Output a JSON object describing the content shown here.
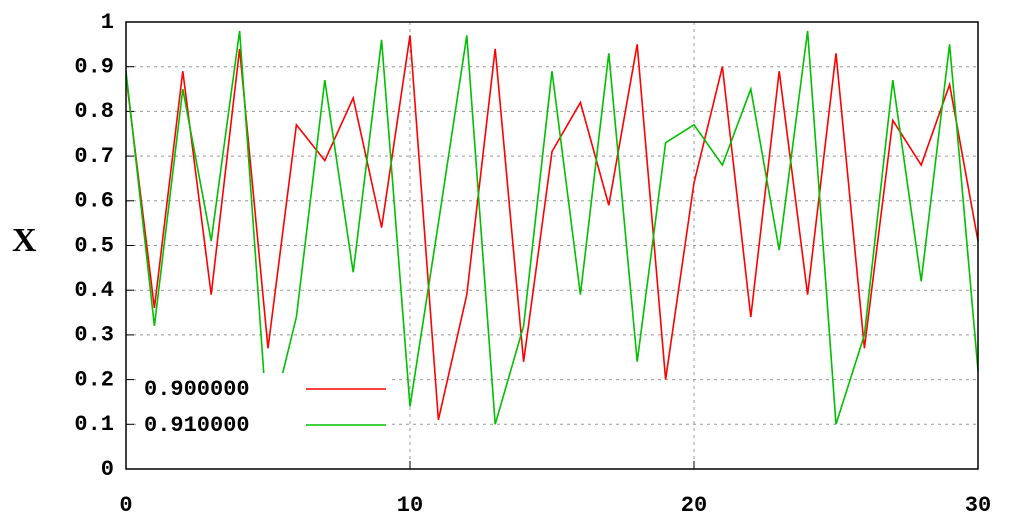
{
  "chart_data": {
    "type": "line",
    "y_label": "X",
    "x": [
      0,
      1,
      2,
      3,
      4,
      5,
      6,
      7,
      8,
      9,
      10,
      11,
      12,
      13,
      14,
      15,
      16,
      17,
      18,
      19,
      20,
      21,
      22,
      23,
      24,
      25,
      26,
      27,
      28,
      29,
      30
    ],
    "series": [
      {
        "name": "0.900000",
        "color": "#ff0000",
        "values": [
          0.88,
          0.36,
          0.89,
          0.39,
          0.94,
          0.27,
          0.77,
          0.69,
          0.83,
          0.54,
          0.97,
          0.11,
          0.39,
          0.94,
          0.24,
          0.71,
          0.82,
          0.59,
          0.95,
          0.2,
          0.64,
          0.9,
          0.34,
          0.89,
          0.39,
          0.93,
          0.27,
          0.78,
          0.68,
          0.86,
          0.51
        ]
      },
      {
        "name": "0.910000",
        "color": "#00c000",
        "values": [
          0.89,
          0.32,
          0.85,
          0.51,
          0.98,
          0.08,
          0.34,
          0.87,
          0.44,
          0.96,
          0.14,
          0.55,
          0.97,
          0.1,
          0.32,
          0.89,
          0.39,
          0.93,
          0.24,
          0.73,
          0.77,
          0.68,
          0.85,
          0.49,
          0.98,
          0.1,
          0.3,
          0.87,
          0.42,
          0.95,
          0.22
        ]
      }
    ],
    "xlim": [
      0,
      30
    ],
    "xticks": [
      0,
      10,
      20,
      30
    ],
    "ylim": [
      0,
      1
    ],
    "yticks": [
      0,
      0.1,
      0.2,
      0.3,
      0.4,
      0.5,
      0.6,
      0.7,
      0.8,
      0.9,
      1
    ],
    "grid": true,
    "legend": "lower left"
  }
}
